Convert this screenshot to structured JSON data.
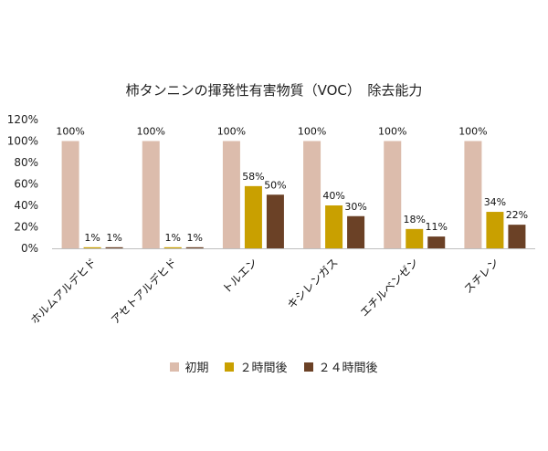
{
  "chart_data": {
    "type": "bar",
    "title": "柿タンニンの揮発性有害物質（VOC）　除去能力",
    "categories": [
      "ホルムアルデヒド",
      "アセトアルデヒド",
      "トルエン",
      "キシレンガス",
      "エチルベンゼン",
      "スチレン"
    ],
    "series": [
      {
        "name": "初期",
        "values": [
          100,
          100,
          100,
          100,
          100,
          100
        ],
        "color": "#dcbcac",
        "labels": [
          "100%",
          "100%",
          "100%",
          "100%",
          "100%",
          "100%"
        ]
      },
      {
        "name": "２時間後",
        "values": [
          1,
          1,
          58,
          40,
          18,
          34
        ],
        "color": "#c9a000",
        "labels": [
          "1%",
          "1%",
          "58%",
          "40%",
          "18%",
          "34%"
        ]
      },
      {
        "name": "２４時間後",
        "values": [
          1,
          1,
          50,
          30,
          11,
          22
        ],
        "color": "#6b4126",
        "labels": [
          "1%",
          "1%",
          "50%",
          "30%",
          "11%",
          "22%"
        ]
      }
    ],
    "ylim": [
      0,
      120
    ],
    "yticks": [
      "0%",
      "20%",
      "40%",
      "60%",
      "80%",
      "100%",
      "120%"
    ],
    "grid": false,
    "legend": "bottom"
  }
}
